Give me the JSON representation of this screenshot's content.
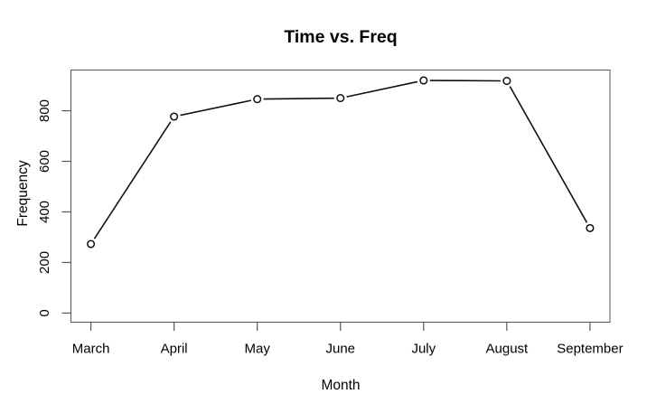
{
  "chart_data": {
    "type": "line",
    "title": "Time vs. Freq",
    "xlabel": "Month",
    "ylabel": "Frequency",
    "categories": [
      "March",
      "April",
      "May",
      "June",
      "July",
      "August",
      "September"
    ],
    "values": [
      273,
      777,
      846,
      850,
      920,
      918,
      336
    ],
    "yticks": [
      0,
      200,
      400,
      600,
      800
    ],
    "ylim": [
      -36,
      961
    ],
    "xlim": [
      0.76,
      7.24
    ],
    "grid": false,
    "legend": null,
    "marker": "open-circle",
    "colors": {
      "background": "#ffffff",
      "axis": "#555555",
      "line": "#111111",
      "marker_stroke": "#111111",
      "marker_fill": "#ffffff",
      "text": "#000000"
    }
  }
}
